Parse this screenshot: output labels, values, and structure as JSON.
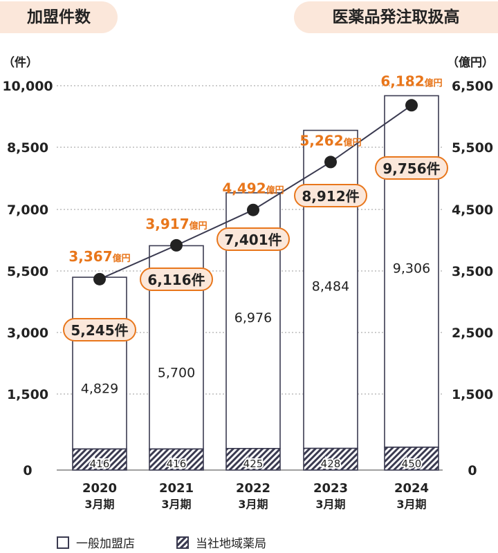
{
  "header": {
    "left_title": "加盟件数",
    "right_title": "医薬品発注取扱高"
  },
  "units": {
    "left": "（件）",
    "right": "（億円）"
  },
  "legend": {
    "general": "一般加盟店",
    "own": "当社地域薬局"
  },
  "colors": {
    "bar_stroke": "#3a3a50",
    "line": "#3a3a50",
    "value_label": "#e8761b",
    "callout_fill": "#fbe7da",
    "callout_stroke": "#e8761b",
    "grid": "#999999"
  },
  "chart_data": {
    "type": "bar",
    "categories": [
      {
        "year": "2020",
        "period": "3月期"
      },
      {
        "year": "2021",
        "period": "3月期"
      },
      {
        "year": "2022",
        "period": "3月期"
      },
      {
        "year": "2023",
        "period": "3月期"
      },
      {
        "year": "2024",
        "period": "3月期"
      }
    ],
    "left_axis": {
      "ticks": [
        0,
        1500,
        3000,
        5500,
        7000,
        8500,
        10000
      ],
      "tick_labels": [
        "0",
        "1,500",
        "3,000",
        "5,500",
        "7,000",
        "8,500",
        "10,000"
      ]
    },
    "right_axis": {
      "ticks": [
        0,
        1500,
        2500,
        3500,
        4500,
        5500,
        6500
      ],
      "tick_labels": [
        "0",
        "1,500",
        "2,500",
        "3,500",
        "4,500",
        "5,500",
        "6,500"
      ]
    },
    "series": [
      {
        "name": "一般加盟店",
        "values": [
          4829,
          5700,
          6976,
          8484,
          9306
        ],
        "labels": [
          "4,829",
          "5,700",
          "6,976",
          "8,484",
          "9,306"
        ]
      },
      {
        "name": "当社地域薬局",
        "values": [
          416,
          416,
          425,
          428,
          450
        ],
        "labels": [
          "416",
          "416",
          "425",
          "428",
          "450"
        ]
      }
    ],
    "totals": {
      "values": [
        5245,
        6116,
        7401,
        8912,
        9756
      ],
      "labels": [
        "5,245件",
        "6,116件",
        "7,401件",
        "8,912件",
        "9,756件"
      ]
    },
    "line": {
      "values": [
        3367,
        3917,
        4492,
        5262,
        6182
      ],
      "labels": [
        {
          "num": "3,367",
          "unit": "億円"
        },
        {
          "num": "3,917",
          "unit": "億円"
        },
        {
          "num": "4,492",
          "unit": "億円"
        },
        {
          "num": "5,262",
          "unit": "億円"
        },
        {
          "num": "6,182",
          "unit": "億円"
        }
      ]
    }
  }
}
